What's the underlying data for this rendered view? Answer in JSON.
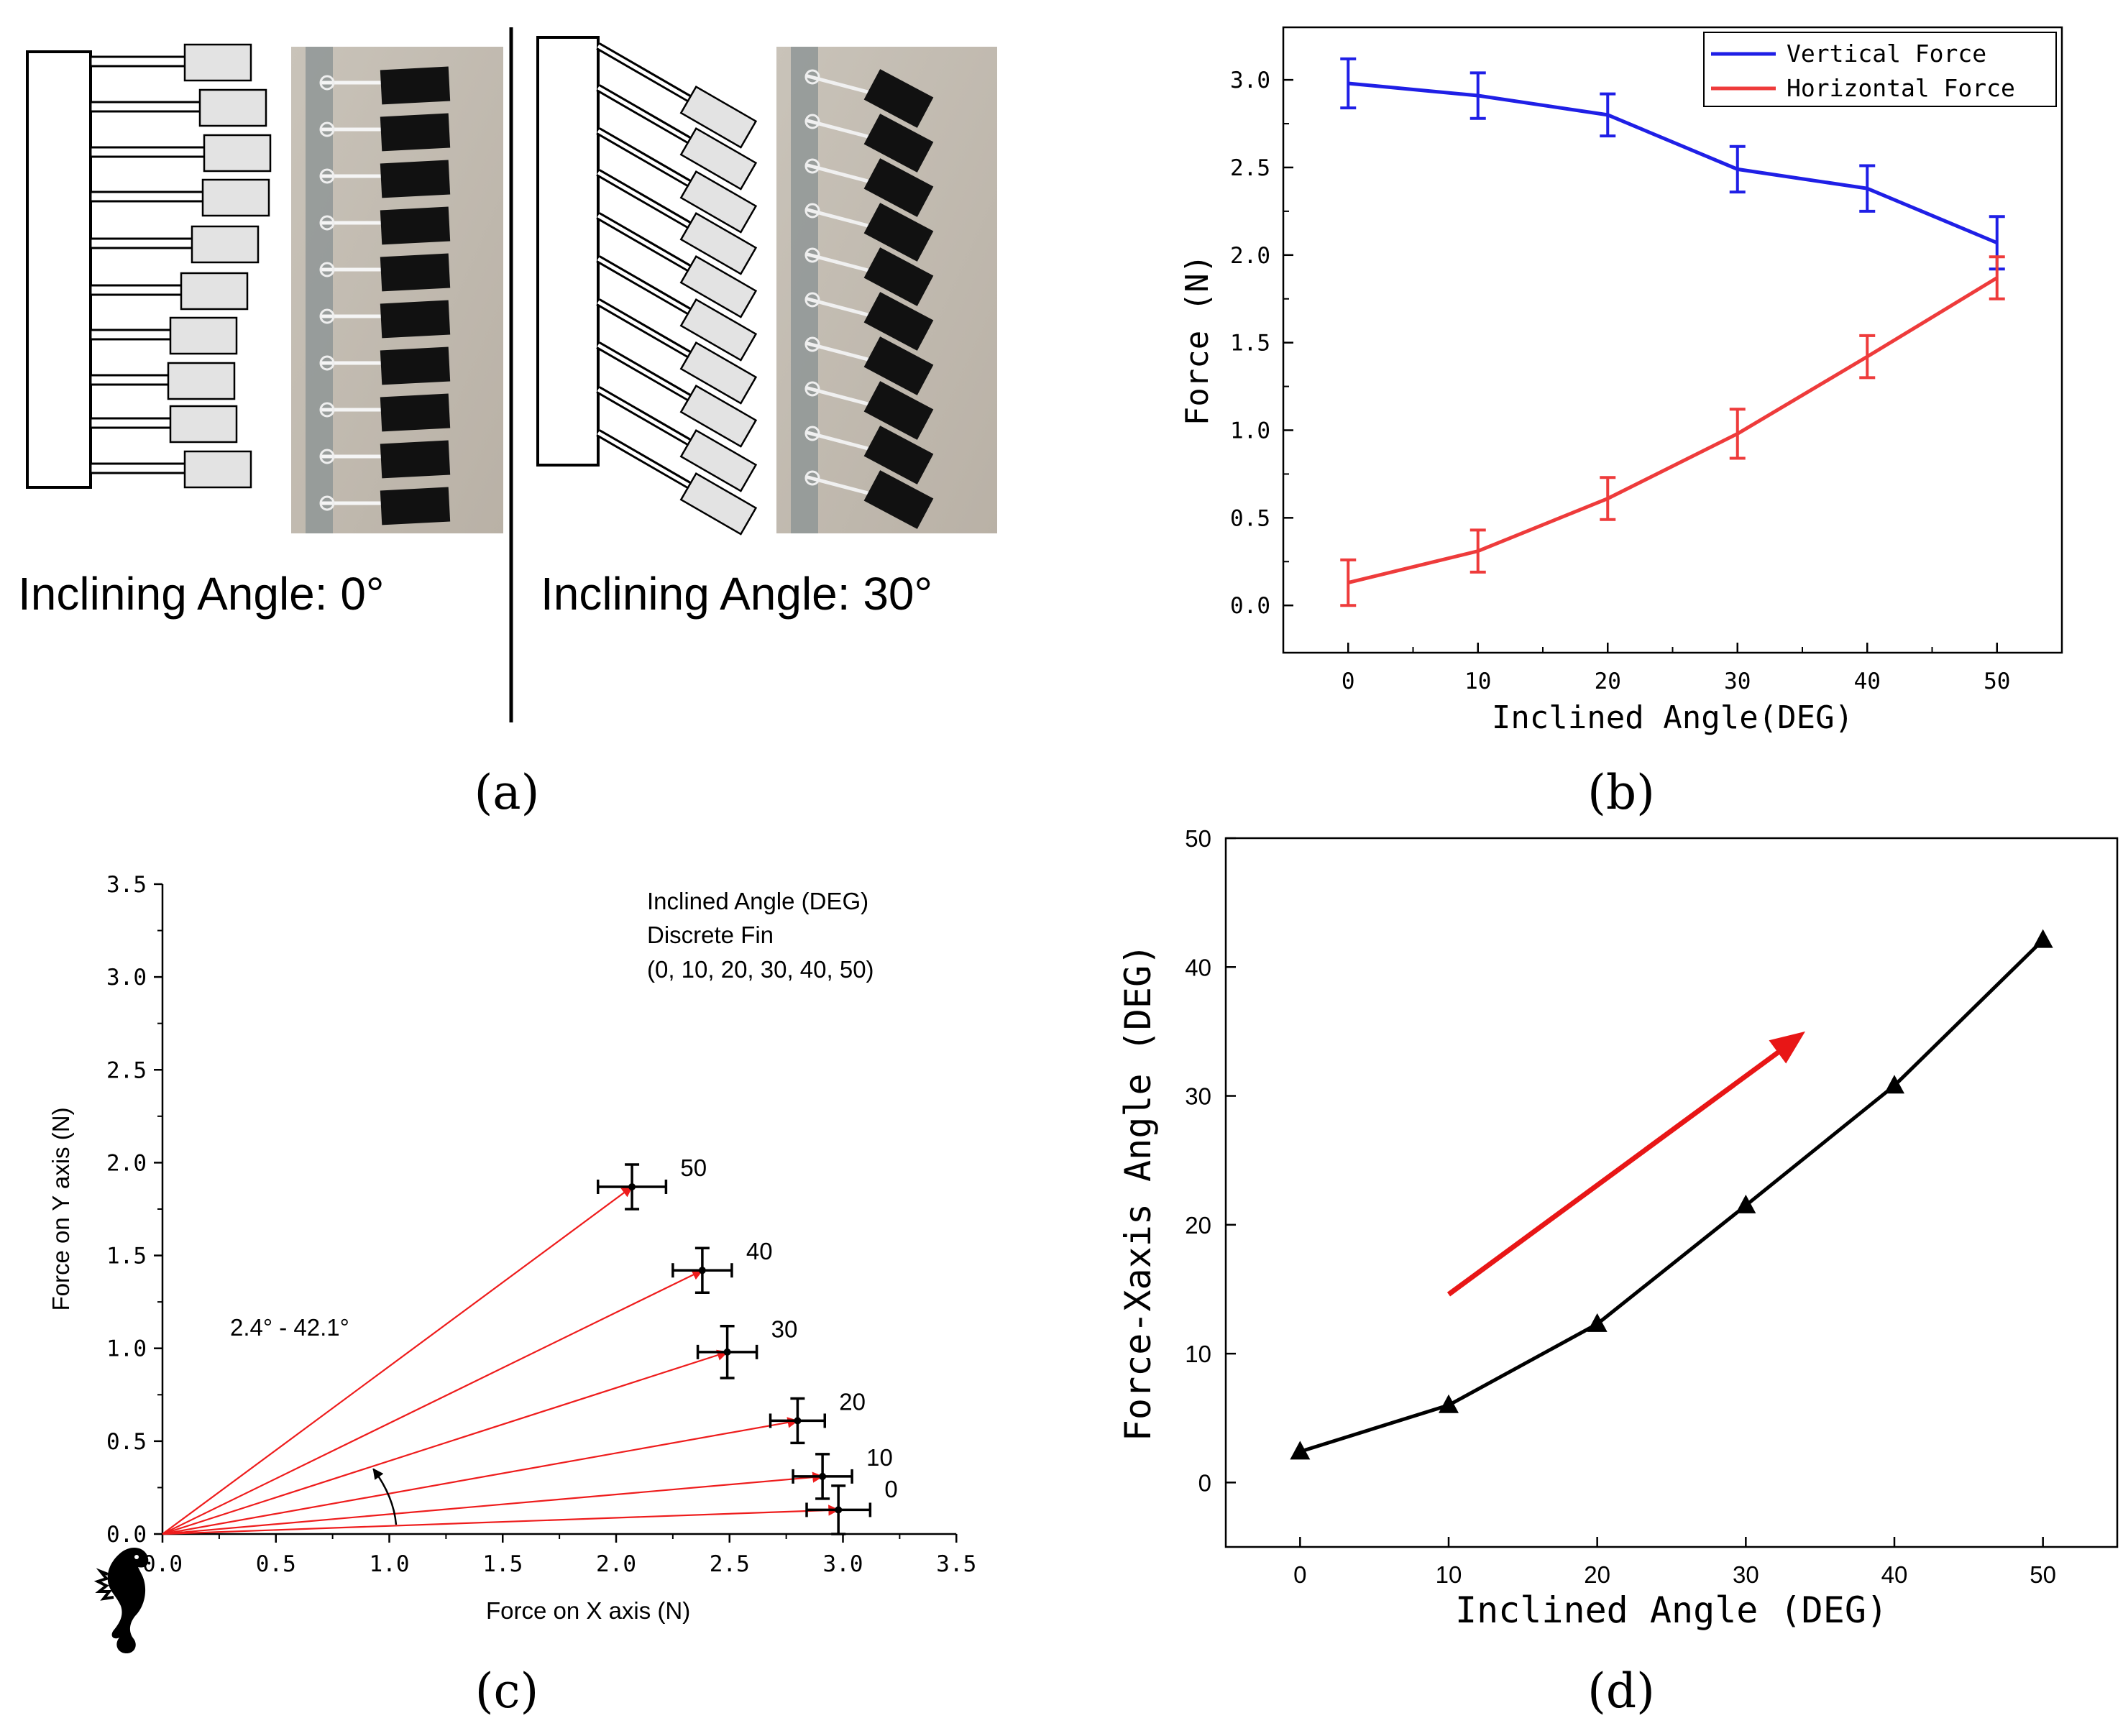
{
  "panels": {
    "a": {
      "label": "(a)",
      "left_caption": "Inclining Angle: 0°",
      "right_caption": "Inclining Angle: 30°"
    },
    "b": {
      "label": "(b)"
    },
    "c": {
      "label": "(c)",
      "note_lines": [
        "Inclined Angle  (DEG)",
        "Discrete Fin",
        "(0, 10, 20, 30, 40, 50)"
      ],
      "range_label": "2.4° - 42.1°"
    },
    "d": {
      "label": "(d)"
    }
  },
  "chart_data": [
    {
      "panel": "b",
      "type": "line",
      "xlabel": "Inclined Angle(DEG)",
      "ylabel": "Force (N)",
      "xlim": [
        -5,
        55
      ],
      "ylim": [
        -0.27,
        3.3
      ],
      "xticks": [
        0,
        10,
        20,
        30,
        40,
        50
      ],
      "yticks": [
        0.0,
        0.5,
        1.0,
        1.5,
        2.0,
        2.5,
        3.0
      ],
      "x": [
        0,
        10,
        20,
        30,
        40,
        50
      ],
      "legend_position": "top-right",
      "series": [
        {
          "name": "Vertical Force",
          "color": "#1f1fe6",
          "values": [
            2.98,
            2.91,
            2.8,
            2.49,
            2.38,
            2.07
          ],
          "errors": [
            0.14,
            0.13,
            0.12,
            0.13,
            0.13,
            0.15
          ]
        },
        {
          "name": "Horizontal Force",
          "color": "#ee3b3b",
          "values": [
            0.13,
            0.31,
            0.61,
            0.98,
            1.42,
            1.87
          ],
          "errors": [
            0.13,
            0.12,
            0.12,
            0.14,
            0.12,
            0.12
          ]
        }
      ]
    },
    {
      "panel": "c",
      "type": "scatter",
      "xlabel": "Force on X axis (N)",
      "ylabel": "Force on Y axis (N)",
      "xlim": [
        0,
        3.5
      ],
      "ylim": [
        0,
        3.5
      ],
      "xticks": [
        0.0,
        0.5,
        1.0,
        1.5,
        2.0,
        2.5,
        3.0,
        3.5
      ],
      "yticks": [
        0.0,
        0.5,
        1.0,
        1.5,
        2.0,
        2.5,
        3.0,
        3.5
      ],
      "points": [
        {
          "label": "0",
          "x": 2.98,
          "y": 0.13,
          "xerr": 0.14,
          "yerr": 0.13
        },
        {
          "label": "10",
          "x": 2.91,
          "y": 0.31,
          "xerr": 0.13,
          "yerr": 0.12
        },
        {
          "label": "20",
          "x": 2.8,
          "y": 0.61,
          "xerr": 0.12,
          "yerr": 0.12
        },
        {
          "label": "30",
          "x": 2.49,
          "y": 0.98,
          "xerr": 0.13,
          "yerr": 0.14
        },
        {
          "label": "40",
          "x": 2.38,
          "y": 1.42,
          "xerr": 0.13,
          "yerr": 0.12
        },
        {
          "label": "50",
          "x": 2.07,
          "y": 1.87,
          "xerr": 0.15,
          "yerr": 0.12
        }
      ],
      "vector_color": "#ee1c1c"
    },
    {
      "panel": "d",
      "type": "line",
      "xlabel": "Inclined Angle (DEG)",
      "ylabel": "Force-Xaxis Angle (DEG)",
      "xlim": [
        -5,
        55
      ],
      "ylim": [
        -5,
        50
      ],
      "xticks": [
        0,
        10,
        20,
        30,
        40,
        50
      ],
      "yticks": [
        0,
        10,
        20,
        30,
        40,
        50
      ],
      "series": [
        {
          "name": "",
          "color": "#000000",
          "x": [
            0,
            10,
            20,
            30,
            40,
            50
          ],
          "values": [
            2.4,
            6.0,
            12.3,
            21.5,
            30.8,
            42.1
          ]
        }
      ],
      "arrow": {
        "from": [
          10,
          14.6
        ],
        "to": [
          34,
          35
        ],
        "color": "#e81616"
      }
    }
  ]
}
